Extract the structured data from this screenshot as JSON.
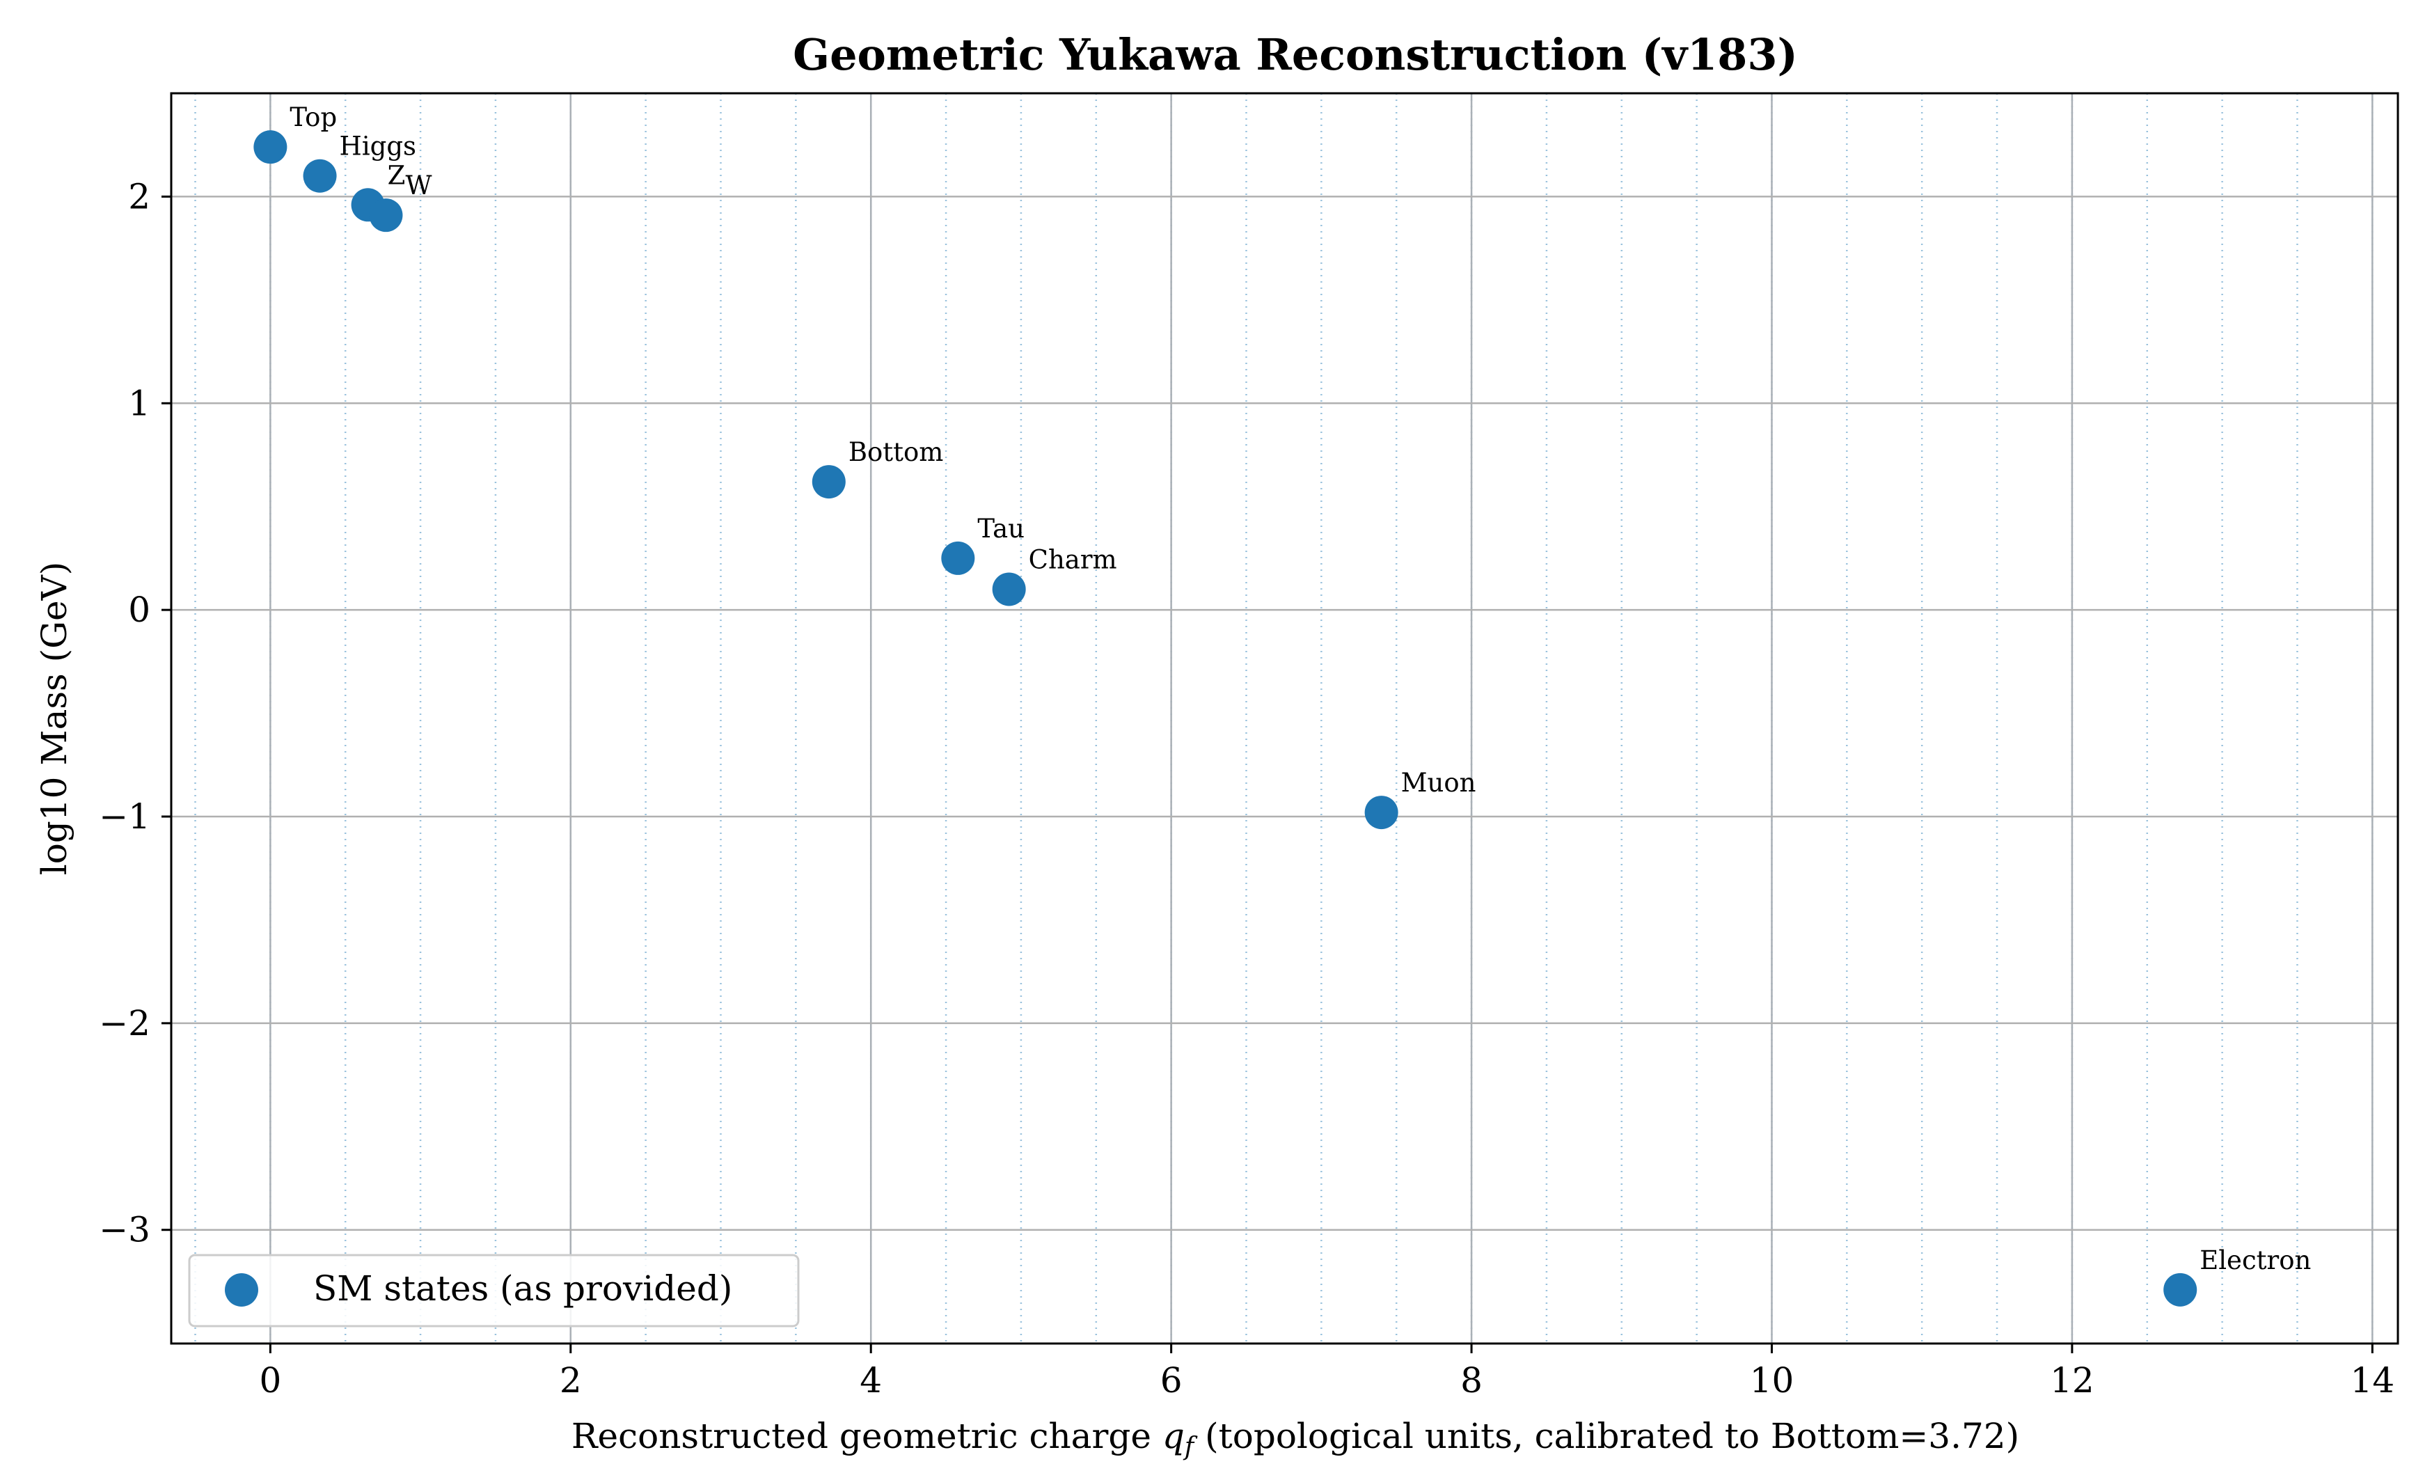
{
  "chart_data": {
    "type": "scatter",
    "title": "Geometric Yukawa Reconstruction (v183)",
    "xlabel_prefix": "Reconstructed geometric charge ",
    "xlabel_symbol": "q",
    "xlabel_subscript": "f",
    "xlabel_suffix": " (topological units, calibrated to Bottom=3.72)",
    "ylabel": "log10 Mass (GeV)",
    "xlim": [
      -0.66,
      14.17
    ],
    "ylim": [
      -3.55,
      2.5
    ],
    "xticks": [
      0,
      2,
      4,
      6,
      8,
      10,
      12,
      14
    ],
    "yticks": [
      -3,
      -2,
      -1,
      0,
      1,
      2
    ],
    "xtick_labels": [
      "0",
      "2",
      "4",
      "6",
      "8",
      "10",
      "12",
      "14"
    ],
    "ytick_labels": [
      "−3",
      "−2",
      "−1",
      "0",
      "1",
      "2"
    ],
    "minor_x_grid_step": 0.5,
    "grid": true,
    "legend_placement": "lower-left",
    "series": [
      {
        "name": "SM states (as provided)",
        "color": "#1f77b4",
        "points": [
          {
            "label": "Top",
            "x": 0.0,
            "y": 2.24
          },
          {
            "label": "Higgs",
            "x": 0.33,
            "y": 2.1
          },
          {
            "label": "Z",
            "x": 0.65,
            "y": 1.96
          },
          {
            "label": "W",
            "x": 0.77,
            "y": 1.91
          },
          {
            "label": "Bottom",
            "x": 3.72,
            "y": 0.62
          },
          {
            "label": "Tau",
            "x": 4.58,
            "y": 0.25
          },
          {
            "label": "Charm",
            "x": 4.92,
            "y": 0.1
          },
          {
            "label": "Muon",
            "x": 7.4,
            "y": -0.98
          },
          {
            "label": "Electron",
            "x": 12.72,
            "y": -3.29
          }
        ]
      }
    ]
  }
}
